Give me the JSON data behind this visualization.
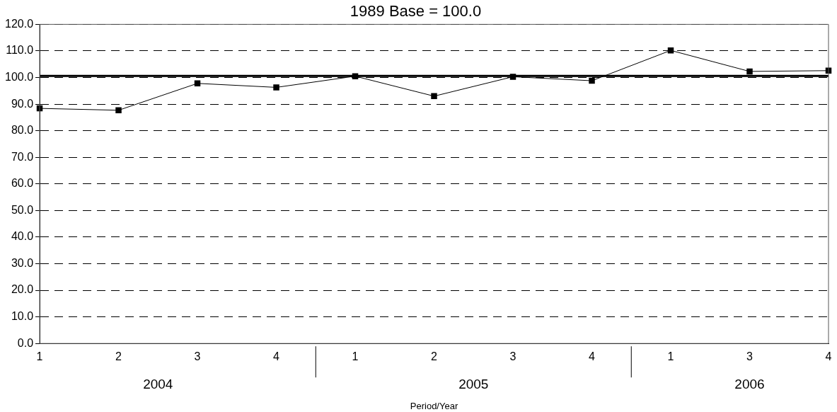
{
  "chart_data": {
    "type": "line",
    "title": "1989 Base = 100.0",
    "xlabel": "Period/Year",
    "categories": [
      "1",
      "2",
      "3",
      "4",
      "1",
      "2",
      "3",
      "4",
      "1",
      "3",
      "4"
    ],
    "series": [
      {
        "color": "#000000",
        "values": [
          88.4,
          87.7,
          97.8,
          96.3,
          100.5,
          93.0,
          100.3,
          98.8,
          110.2,
          102.3,
          102.6
        ]
      }
    ],
    "ylim": [
      0,
      120
    ],
    "yticks": [
      {
        "value": 0,
        "label": "0.0"
      },
      {
        "value": 10,
        "label": "10.0"
      },
      {
        "value": 20,
        "label": "20.0"
      },
      {
        "value": 30,
        "label": "30.0"
      },
      {
        "value": 40,
        "label": "40.0"
      },
      {
        "value": 50,
        "label": "50.0"
      },
      {
        "value": 60,
        "label": "60.0"
      },
      {
        "value": 70,
        "label": "70.0"
      },
      {
        "value": 80,
        "label": "80.0"
      },
      {
        "value": 90,
        "label": "90.0"
      },
      {
        "value": 100,
        "label": "100.0"
      },
      {
        "value": 110,
        "label": "110.0"
      },
      {
        "value": 120,
        "label": "120.0"
      }
    ],
    "ref_lines": [
      {
        "axis": "y",
        "value": 100.6,
        "color": "#000000"
      }
    ],
    "annotations": [
      "2004",
      "2005",
      "2006"
    ],
    "grid": "y",
    "line_style": "solid",
    "marker": "square",
    "legend": false
  }
}
